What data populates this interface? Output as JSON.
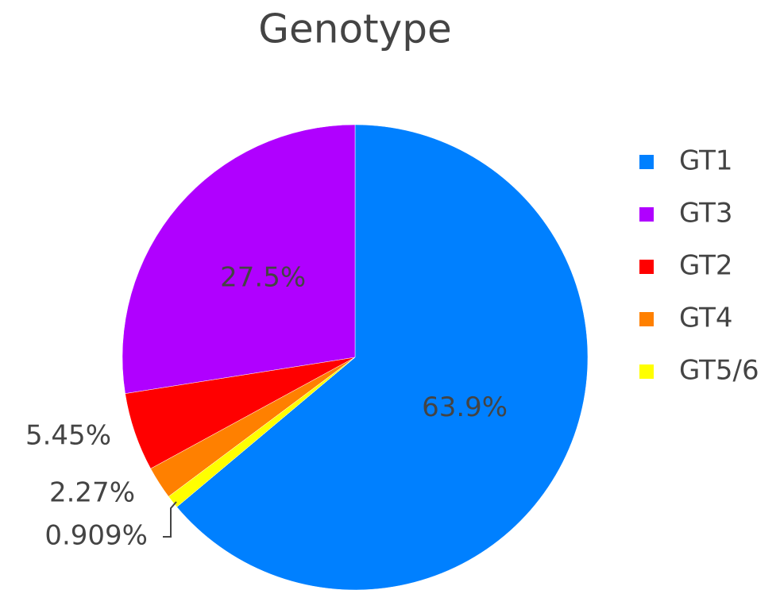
{
  "chart_data": {
    "type": "pie",
    "title": "Genotype",
    "categories": [
      "GT1",
      "GT3",
      "GT2",
      "GT4",
      "GT5/6"
    ],
    "values": [
      63.9,
      27.5,
      5.45,
      2.27,
      0.909
    ],
    "value_labels": [
      "63.9%",
      "27.5%",
      "5.45%",
      "2.27%",
      "0.909%"
    ],
    "colors": [
      "#0080ff",
      "#b000ff",
      "#ff0000",
      "#ff8000",
      "#ffff00"
    ],
    "legend": "right"
  }
}
